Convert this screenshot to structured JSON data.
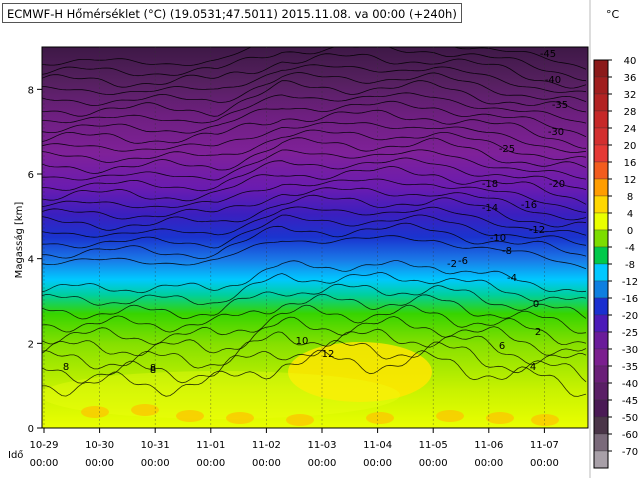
{
  "chart_data": {
    "type": "heatmap",
    "title": "ECMWF-H Hőmérséklet (°C) (19.0531;47.5011) 2015.11.08. va 00:00 (+240h)",
    "ylabel": "Magasság [km]",
    "xlabel": "Idő",
    "unit": "°C",
    "ylim": [
      0,
      9
    ],
    "y_ticks": [
      0,
      2,
      4,
      6,
      8
    ],
    "x_ticks": [
      {
        "date": "10-29",
        "time": "00:00"
      },
      {
        "date": "10-30",
        "time": "00:00"
      },
      {
        "date": "10-31",
        "time": "00:00"
      },
      {
        "date": "11-01",
        "time": "00:00"
      },
      {
        "date": "11-02",
        "time": "00:00"
      },
      {
        "date": "11-03",
        "time": "00:00"
      },
      {
        "date": "11-04",
        "time": "00:00"
      },
      {
        "date": "11-05",
        "time": "00:00"
      },
      {
        "date": "11-06",
        "time": "00:00"
      },
      {
        "date": "11-07",
        "time": "00:00"
      }
    ],
    "colorbar": {
      "levels": [
        "40",
        "36",
        "32",
        "28",
        "24",
        "20",
        "16",
        "12",
        "8",
        "4",
        "0",
        "-4",
        "-8",
        "-12",
        "-16",
        "-20",
        "-25",
        "-30",
        "-35",
        "-40",
        "-45",
        "-50",
        "-60",
        "-70"
      ],
      "colors": [
        "#8b1a1a",
        "#a01e1e",
        "#b22222",
        "#c62828",
        "#d32f2f",
        "#e53935",
        "#f25c1e",
        "#ff9d00",
        "#ffd700",
        "#eaff00",
        "#7cdd00",
        "#00c94a",
        "#00c8ff",
        "#0e7fe0",
        "#1a2fd0",
        "#4b1ab8",
        "#6a1b9a",
        "#7b1f8f",
        "#6a1f78",
        "#5a1f66",
        "#4a1a55",
        "#4a3548",
        "#7a6a7a",
        "#a8a0a8"
      ]
    },
    "contour_labels": [
      {
        "text": "-45",
        "t": 1.0,
        "z": 7.3,
        "pos": "upper-right"
      },
      {
        "text": "-40",
        "t": 1.0,
        "z": 7.0,
        "pos": "upper-right"
      },
      {
        "text": "-35",
        "t": 1.0,
        "z": 6.6,
        "pos": "upper-right"
      },
      {
        "text": "-30",
        "t": 1.0,
        "z": 6.2,
        "pos": "upper-right"
      },
      {
        "text": "-25",
        "t": 1.0,
        "z": 5.8,
        "pos": "upper-right"
      },
      {
        "text": "-20",
        "t": 1.0,
        "z": 5.3,
        "pos": "upper-right"
      },
      {
        "text": "-18",
        "t": 1.0,
        "z": 5.5,
        "pos": "middle"
      },
      {
        "text": "-16",
        "t": 1.0,
        "z": 5.0,
        "pos": "upper-right"
      },
      {
        "text": "-14",
        "t": 1.0,
        "z": 5.0,
        "pos": "middle"
      },
      {
        "text": "-12",
        "t": 1.0,
        "z": 4.6,
        "pos": "upper-right"
      },
      {
        "text": "-10",
        "t": 1.0,
        "z": 4.4,
        "pos": "middle"
      },
      {
        "text": "-8",
        "t": 1.0,
        "z": 4.1,
        "pos": "upper-right"
      },
      {
        "text": "-6",
        "t": 1.0,
        "z": 3.9,
        "pos": "middle"
      },
      {
        "text": "-4",
        "t": 1.0,
        "z": 3.5,
        "pos": "middle"
      },
      {
        "text": "-2",
        "t": 1.0,
        "z": 3.9,
        "pos": "middle"
      },
      {
        "text": "0",
        "t": 1.0,
        "z": 3.0,
        "pos": "right"
      },
      {
        "text": "2",
        "t": 1.0,
        "z": 2.3,
        "pos": "right"
      },
      {
        "text": "4",
        "t": 1.0,
        "z": 1.4,
        "pos": "right"
      },
      {
        "text": "6",
        "t": 1.0,
        "z": 1.9,
        "pos": "right"
      },
      {
        "text": "8",
        "t": 1.0,
        "z": 1.2,
        "pos": "left"
      },
      {
        "text": "8",
        "t": 1.0,
        "z": 1.2,
        "pos": "middle"
      },
      {
        "text": "8",
        "t": 1.0,
        "z": 1.5,
        "pos": "middle"
      },
      {
        "text": "10",
        "t": 1.0,
        "z": 2.0,
        "pos": "middle"
      },
      {
        "text": "12",
        "t": 1.0,
        "z": 1.6,
        "pos": "middle"
      }
    ]
  }
}
